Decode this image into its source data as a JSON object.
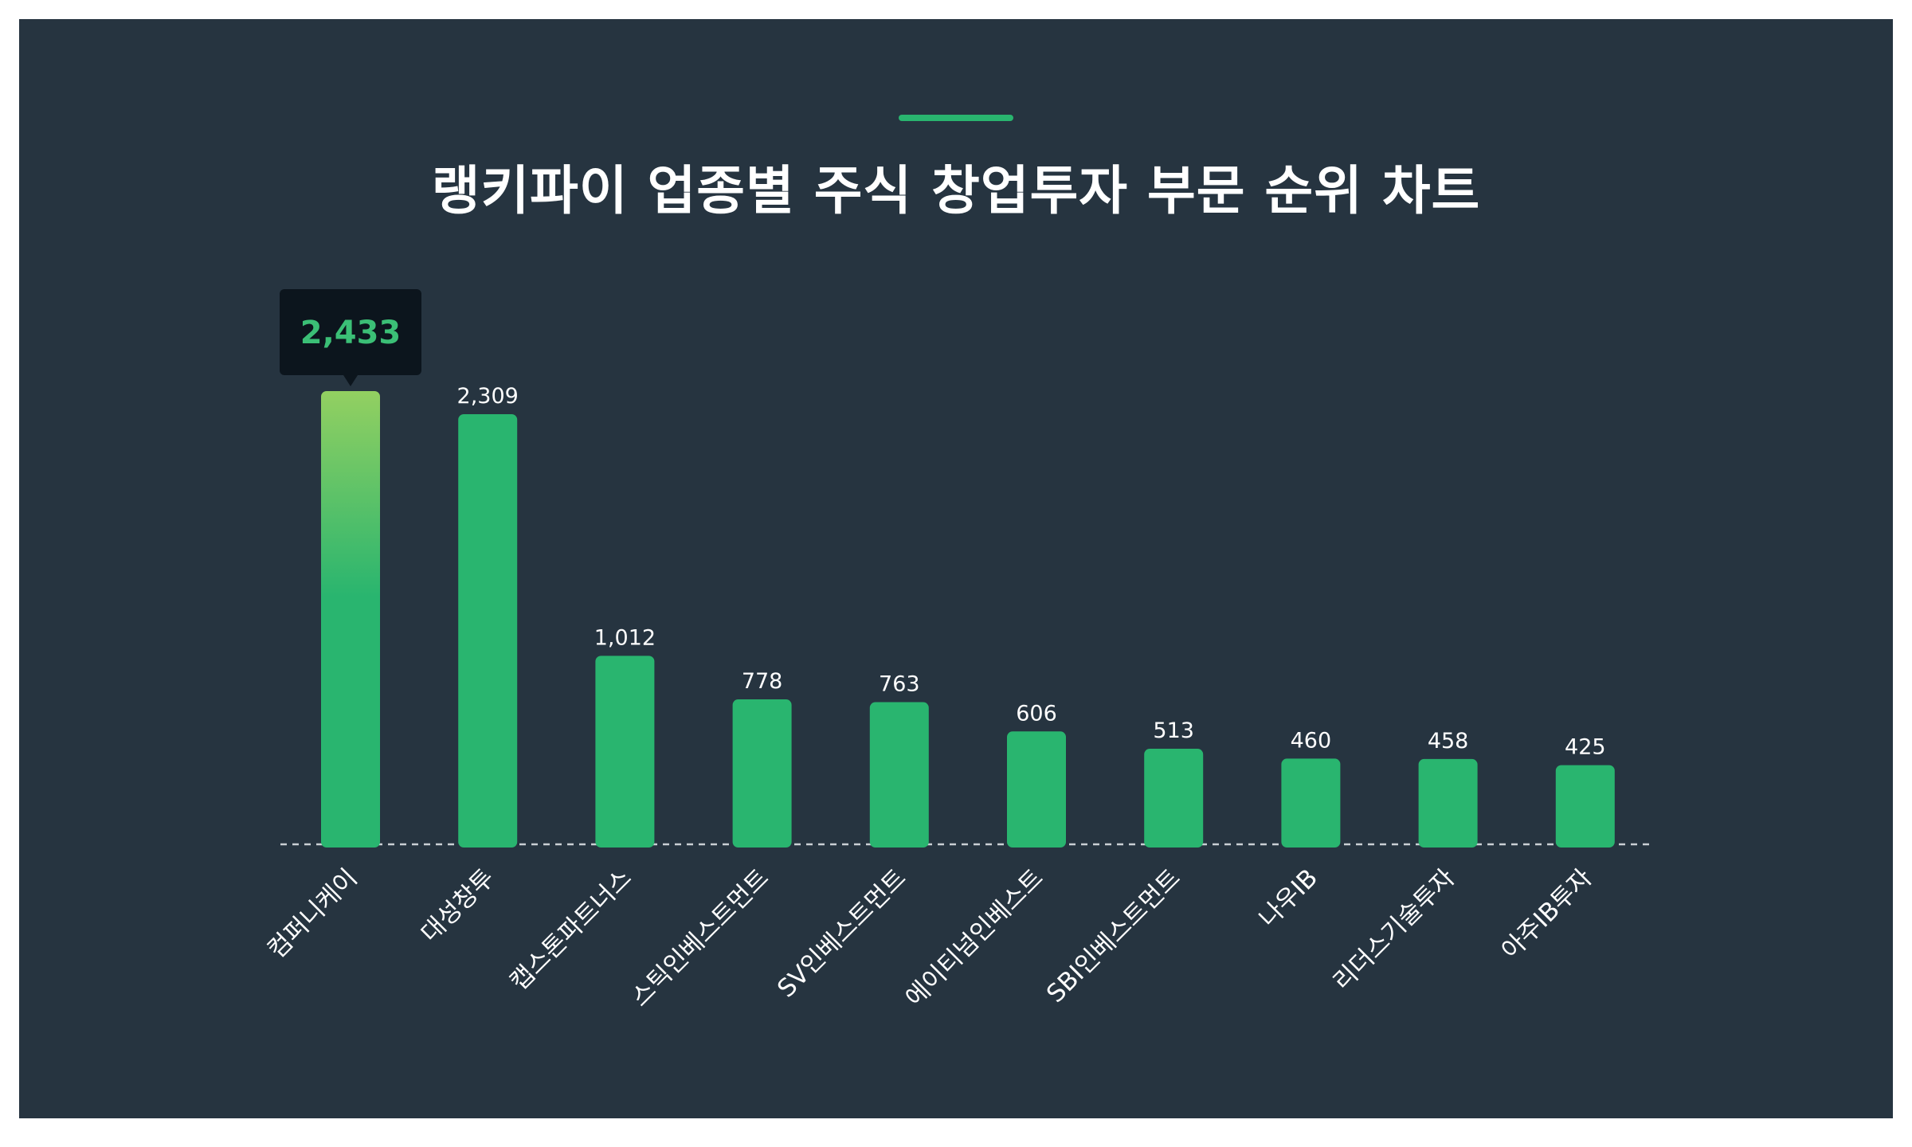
{
  "colors": {
    "background": "#263440",
    "bar": "#29b56f",
    "bar_highlight_top": "#93d061",
    "accent": "#29b56f",
    "tooltip_bg": "#0c151d",
    "tooltip_text": "#3bbf76",
    "baseline": "#c9cfd4"
  },
  "chart_data": {
    "type": "bar",
    "title": "랭키파이 업종별 주식 창업투자 부문 순위 차트",
    "categories": [
      "컴퍼니케이",
      "대성창투",
      "캡스톤파트너스",
      "스틱인베스트먼트",
      "SV인베스트먼트",
      "에이티넘인베스트",
      "SBI인베스트먼트",
      "나우IB",
      "리더스기술투자",
      "아주IB투자"
    ],
    "values": [
      2433,
      2309,
      1012,
      778,
      763,
      606,
      513,
      460,
      458,
      425
    ],
    "value_labels": [
      "2,433",
      "2,309",
      "1,012",
      "778",
      "763",
      "606",
      "513",
      "460",
      "458",
      "425"
    ],
    "ylim": [
      0,
      2433
    ],
    "grid": false,
    "legend": "none",
    "highlight": {
      "index": 0,
      "label": "2,433"
    }
  }
}
